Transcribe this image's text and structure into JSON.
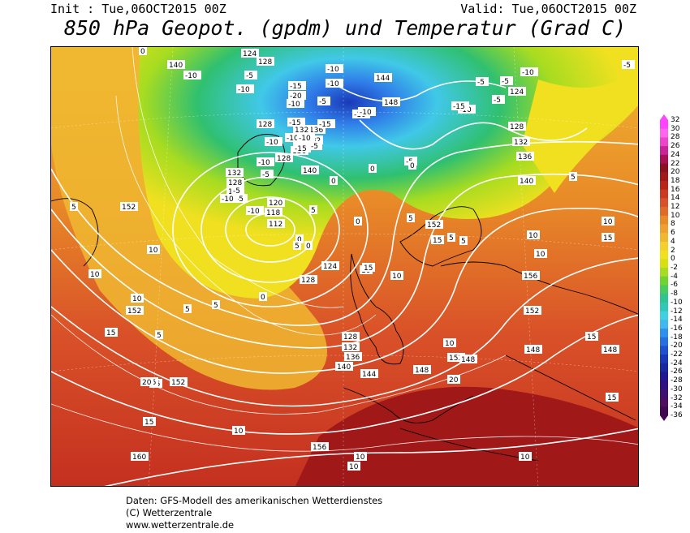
{
  "header": {
    "init": "Init : Tue,06OCT2015 00Z",
    "valid": "Valid: Tue,06OCT2015 00Z",
    "title": "850 hPa Geopot. (gpdm) und Temperatur (Grad C)"
  },
  "colorbar": {
    "labels": [
      "32",
      "30",
      "28",
      "26",
      "24",
      "22",
      "20",
      "18",
      "16",
      "14",
      "12",
      "10",
      "8",
      "6",
      "4",
      "2",
      "0",
      "-2",
      "-4",
      "-6",
      "-8",
      "-10",
      "-12",
      "-14",
      "-16",
      "-18",
      "-20",
      "-22",
      "-24",
      "-26",
      "-28",
      "-30",
      "-32",
      "-34",
      "-36"
    ],
    "colors": [
      "#ff44ff",
      "#ff66ee",
      "#ee44cc",
      "#cc2299",
      "#aa1155",
      "#8b1020",
      "#a01818",
      "#b82418",
      "#cc3820",
      "#d95128",
      "#e06a28",
      "#e88a28",
      "#f0a030",
      "#f0b830",
      "#f5cf2c",
      "#f0e020",
      "#d8e010",
      "#a8dc20",
      "#70d430",
      "#48cc60",
      "#30c490",
      "#30c8b8",
      "#40d0e0",
      "#40b8f0",
      "#3090f0",
      "#2870e0",
      "#2050d0",
      "#1838b8",
      "#1828a0",
      "#201890",
      "#301080",
      "#401070",
      "#500c60",
      "#400850"
    ]
  },
  "map_labels": {
    "geopotential": [
      "140",
      "128",
      "124",
      "128",
      "144",
      "148",
      "124",
      "128",
      "132",
      "136",
      "140",
      "132",
      "128",
      "124",
      "120",
      "118",
      "112",
      "124",
      "128",
      "128",
      "132",
      "136",
      "140",
      "144",
      "148",
      "152",
      "156",
      "152",
      "148",
      "148",
      "148",
      "152",
      "152",
      "152",
      "156",
      "160",
      "136",
      "132",
      "140",
      "136",
      "128",
      "132",
      "140",
      "152",
      "15"
    ],
    "temperature": [
      "-10",
      "-10",
      "-15",
      "-20",
      "-10",
      "-10",
      "-10",
      "-5",
      "-10",
      "-15",
      "-5",
      "-10",
      "-10",
      "-10",
      "-5",
      "-5",
      "-5",
      "-10",
      "-10",
      "-15",
      "-10",
      "-15",
      "-5",
      "-10",
      "-5",
      "-10",
      "-5",
      "-5",
      "-5",
      "-10",
      "-15",
      "-5",
      "0",
      "0",
      "0",
      "0",
      "0",
      "0",
      "0",
      "0",
      "5",
      "5",
      "5",
      "5",
      "5",
      "5",
      "5",
      "10",
      "10",
      "10",
      "10",
      "10",
      "10",
      "10",
      "10",
      "15",
      "15",
      "15",
      "15",
      "15",
      "15",
      "15",
      "20",
      "20",
      "20",
      "20",
      "10",
      "10",
      "10",
      "10",
      "5",
      "5",
      "5",
      "15",
      "10"
    ]
  },
  "footer": {
    "line1": "Daten: GFS-Modell des amerikanischen Wetterdienstes",
    "line2": "(C) Wetterzentrale",
    "line3": "www.wetterzentrale.de"
  }
}
